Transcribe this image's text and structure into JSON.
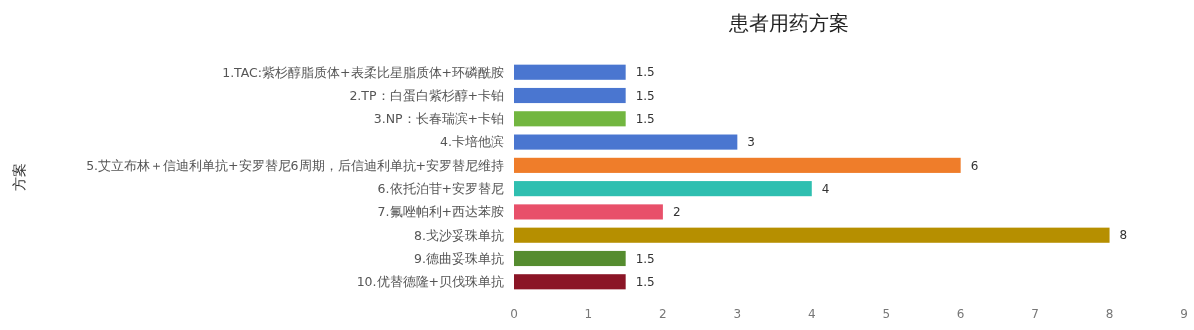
{
  "chart_data": {
    "type": "bar",
    "orientation": "horizontal",
    "title": "患者用药方案",
    "ylabel": "方案",
    "categories": [
      "1.TAC:紫杉醇脂质体+表柔比星脂质体+环磷酰胺",
      "2.TP：白蛋白紫杉醇+卡铂",
      "3.NP：长春瑞滨+卡铂",
      "4.卡培他滨",
      "5.艾立布林＋信迪利单抗+安罗替尼6周期，后信迪利单抗+安罗替尼维持",
      "6.依托泊苷+安罗替尼",
      "7.氟唑帕利+西达苯胺",
      "8.戈沙妥珠单抗",
      "9.德曲妥珠单抗",
      "10.优替德隆+贝伐珠单抗"
    ],
    "values": [
      1.5,
      1.5,
      1.5,
      3,
      6,
      4,
      2,
      8,
      1.5,
      1.5
    ],
    "colors": [
      "#4a76d0",
      "#4a76d0",
      "#72b640",
      "#4a76d0",
      "#ef7d2a",
      "#2fbfb0",
      "#e8506a",
      "#b68f00",
      "#558c2f",
      "#8b1526"
    ],
    "xlim": [
      0,
      9
    ],
    "xticks": [
      0,
      1,
      2,
      3,
      4,
      5,
      6,
      7,
      8,
      9
    ],
    "data_labels": true
  }
}
